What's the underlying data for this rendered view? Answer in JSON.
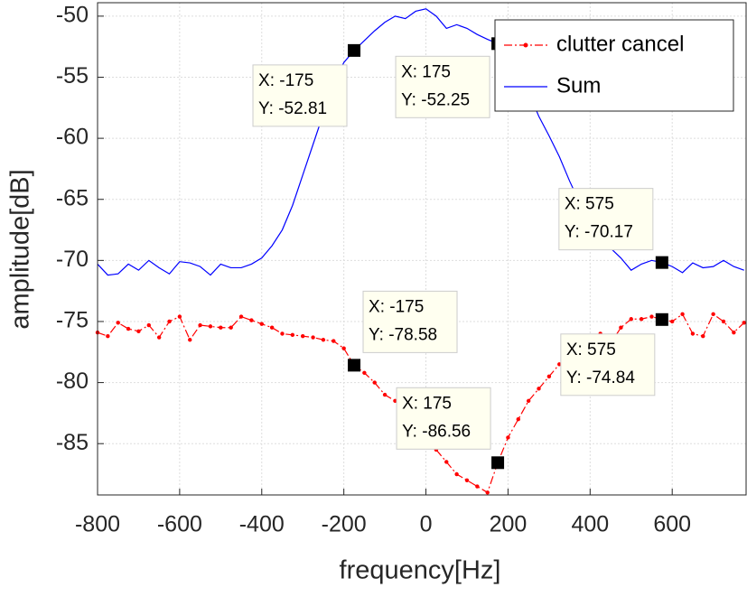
{
  "chart_data": {
    "type": "line",
    "xlabel": "frequency[Hz]",
    "ylabel": "amplitude[dB]",
    "xlim": [
      -800,
      780
    ],
    "ylim": [
      -89.2,
      -48.9
    ],
    "xticks": [
      -800,
      -600,
      -400,
      -200,
      0,
      200,
      400,
      600
    ],
    "yticks": [
      -85,
      -80,
      -75,
      -70,
      -65,
      -60,
      -55,
      -50
    ],
    "grid": true,
    "legend": "upper right",
    "x": [
      -800,
      -775,
      -750,
      -725,
      -700,
      -675,
      -650,
      -625,
      -600,
      -575,
      -550,
      -525,
      -500,
      -475,
      -450,
      -425,
      -400,
      -375,
      -350,
      -325,
      -300,
      -275,
      -250,
      -225,
      -200,
      -175,
      -150,
      -125,
      -100,
      -75,
      -50,
      -25,
      0,
      25,
      50,
      75,
      100,
      125,
      150,
      175,
      200,
      225,
      250,
      275,
      300,
      325,
      350,
      375,
      400,
      425,
      450,
      475,
      500,
      525,
      550,
      575,
      600,
      625,
      650,
      675,
      700,
      725,
      750,
      775
    ],
    "series": [
      {
        "name": "clutter cancel",
        "color": "#ff0000",
        "markers": true,
        "values": [
          -75.9,
          -76.2,
          -75.1,
          -75.6,
          -75.8,
          -75.3,
          -76.3,
          -75.0,
          -74.6,
          -76.5,
          -75.3,
          -75.4,
          -75.5,
          -75.5,
          -74.6,
          -74.9,
          -75.2,
          -75.5,
          -76.0,
          -76.1,
          -76.2,
          -76.3,
          -76.5,
          -76.6,
          -77.2,
          -78.58,
          -79.2,
          -80.0,
          -81.0,
          -81.5,
          -82.5,
          -83.3,
          -84.5,
          -85.5,
          -86.5,
          -87.5,
          -88.0,
          -88.5,
          -89.0,
          -86.56,
          -84.5,
          -83.0,
          -81.5,
          -80.5,
          -79.5,
          -78.5,
          -78.0,
          -77.2,
          -76.8,
          -76.0,
          -76.8,
          -75.5,
          -74.8,
          -74.8,
          -74.6,
          -74.84,
          -75.0,
          -74.4,
          -76.0,
          -76.2,
          -74.4,
          -75.0,
          -75.9,
          -75.1
        ]
      },
      {
        "name": "Sum",
        "color": "#0000ff",
        "markers": false,
        "values": [
          -70.3,
          -71.2,
          -71.1,
          -70.3,
          -70.8,
          -70.0,
          -70.6,
          -71.1,
          -70.1,
          -70.2,
          -70.5,
          -71.2,
          -70.3,
          -70.6,
          -70.6,
          -70.3,
          -69.8,
          -68.8,
          -67.5,
          -65.5,
          -63.0,
          -60.5,
          -58.0,
          -55.5,
          -53.8,
          -52.81,
          -52.0,
          -51.2,
          -50.5,
          -50.0,
          -50.2,
          -49.6,
          -49.4,
          -50.0,
          -51.0,
          -50.7,
          -51.0,
          -51.5,
          -51.9,
          -52.25,
          -53.0,
          -54.5,
          -56.2,
          -58.2,
          -59.8,
          -61.5,
          -63.5,
          -65.3,
          -66.8,
          -67.8,
          -69.0,
          -69.8,
          -70.8,
          -70.3,
          -70.0,
          -70.17,
          -70.5,
          -71.0,
          -70.2,
          -70.6,
          -70.5,
          -70.0,
          -70.5,
          -70.8
        ]
      }
    ],
    "annotations": [
      {
        "x": -175,
        "y": -52.81,
        "label_x": "X: -175",
        "label_y": "Y: -52.81"
      },
      {
        "x": 175,
        "y": -52.25,
        "label_x": "X: 175",
        "label_y": "Y: -52.25"
      },
      {
        "x": 575,
        "y": -70.17,
        "label_x": "X: 575",
        "label_y": "Y: -70.17"
      },
      {
        "x": -175,
        "y": -78.58,
        "label_x": "X: -175",
        "label_y": "Y: -78.58"
      },
      {
        "x": 175,
        "y": -86.56,
        "label_x": "X: 175",
        "label_y": "Y: -86.56"
      },
      {
        "x": 575,
        "y": -74.84,
        "label_x": "X: 575",
        "label_y": "Y: -74.84"
      }
    ]
  }
}
